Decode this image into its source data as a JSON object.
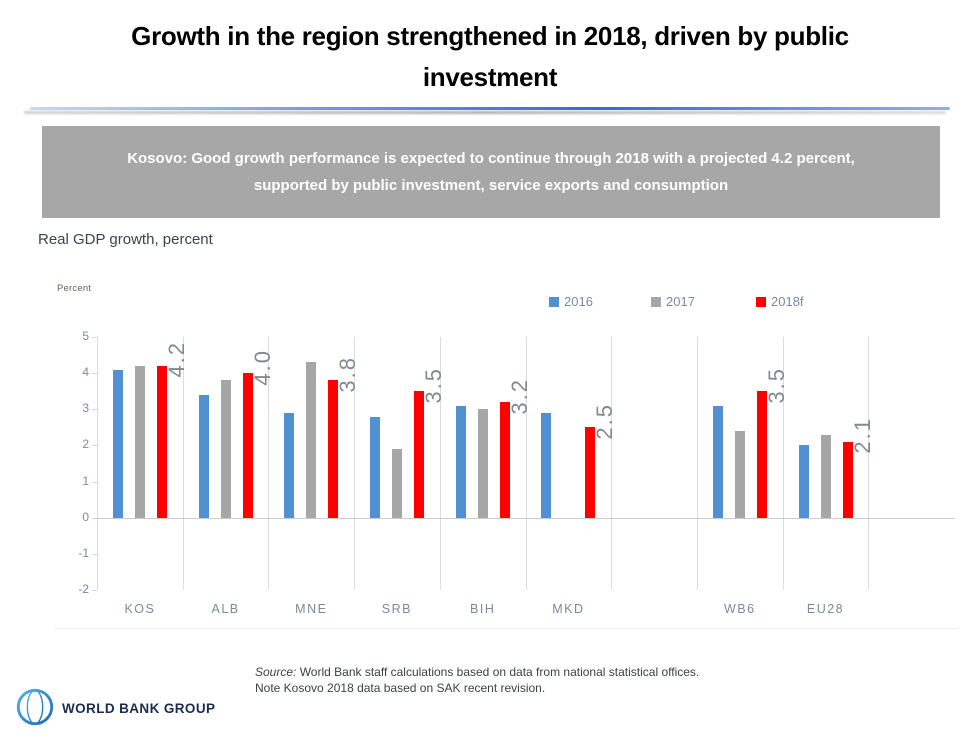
{
  "slide": {
    "title_line1": "Growth in the region strengthened in 2018, driven by public",
    "title_line2": "investment",
    "banner_line1": "Kosovo: Good growth performance is expected to continue through 2018 with a projected 4.2 percent,",
    "banner_line2": "supported by public investment, service exports and consumption",
    "subtitle": "Real GDP growth, percent"
  },
  "chart_data": {
    "type": "bar",
    "axis_title": "Percent",
    "categories": [
      "KOS",
      "ALB",
      "MNE",
      "SRB",
      "BIH",
      "MKD",
      "",
      "WB6",
      "EU28"
    ],
    "series": [
      {
        "name": "2016",
        "color": "#5191d1",
        "values": [
          4.1,
          3.4,
          2.9,
          2.8,
          3.1,
          2.9,
          null,
          3.1,
          2.0
        ]
      },
      {
        "name": "2017",
        "color": "#a6a6a6",
        "values": [
          4.2,
          3.8,
          4.3,
          1.9,
          3.0,
          0,
          null,
          2.4,
          2.3
        ]
      },
      {
        "name": "2018f",
        "color": "#ff0000",
        "values": [
          4.2,
          4.0,
          3.8,
          3.5,
          3.2,
          2.5,
          null,
          3.5,
          2.1
        ]
      }
    ],
    "data_labels_2018f": [
      "4.2",
      "4.0",
      "3.8",
      "3.5",
      "3.2",
      "2.5",
      null,
      "3.5",
      "2.1"
    ],
    "ylim": [
      -2,
      5
    ],
    "yticks": [
      5,
      4,
      3,
      2,
      1,
      0,
      -1,
      -2
    ],
    "legend_position": "top-right",
    "grid": "vertical category separators only",
    "label_color": "#808a93",
    "axis_label_color": "#7b8a9d"
  },
  "footer": {
    "source_prefix": "Source:",
    "source_rest": " World Bank staff calculations based on data from national statistical offices.",
    "note_text": "Note Kosovo 2018  data based on SAK recent revision.",
    "logo_text": "WORLD BANK GROUP"
  }
}
